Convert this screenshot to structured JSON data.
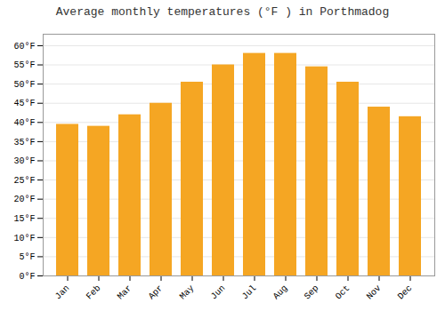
{
  "chart_data": {
    "type": "bar",
    "title": "Average monthly temperatures (°F ) in Porthmadog",
    "categories": [
      "Jan",
      "Feb",
      "Mar",
      "Apr",
      "May",
      "Jun",
      "Jul",
      "Aug",
      "Sep",
      "Oct",
      "Nov",
      "Dec"
    ],
    "values": [
      39.5,
      39.0,
      42.0,
      45.0,
      50.5,
      55.0,
      58.0,
      58.0,
      54.5,
      50.5,
      44.0,
      41.5
    ],
    "color": "#F5A623",
    "ylim": [
      0,
      63
    ],
    "yticks": [
      {
        "value": 0,
        "label": "0°F"
      },
      {
        "value": 5,
        "label": "5°F"
      },
      {
        "value": 10,
        "label": "10°F"
      },
      {
        "value": 15,
        "label": "15°F"
      },
      {
        "value": 20,
        "label": "20°F"
      },
      {
        "value": 25,
        "label": "25°F"
      },
      {
        "value": 30,
        "label": "30°F"
      },
      {
        "value": 35,
        "label": "35°F"
      },
      {
        "value": 40,
        "label": "40°F"
      },
      {
        "value": 45,
        "label": "45°F"
      },
      {
        "value": 50,
        "label": "50°F"
      },
      {
        "value": 55,
        "label": "55°F"
      },
      {
        "value": 60,
        "label": "60°F"
      }
    ],
    "grid": true
  }
}
